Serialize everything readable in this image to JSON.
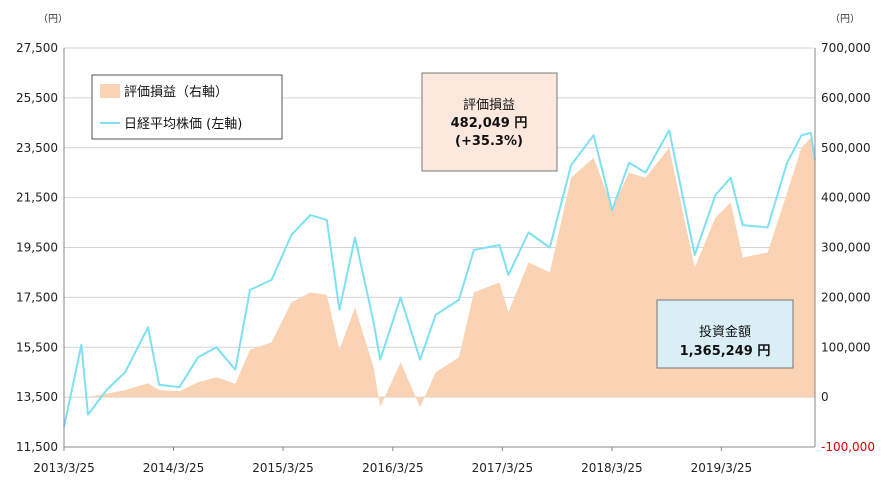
{
  "chart_data": {
    "type": "area",
    "left_unit": "（円）",
    "right_unit": "（円）",
    "x_ticks": [
      "2013/3/25",
      "2014/3/25",
      "2015/3/25",
      "2016/3/25",
      "2017/3/25",
      "2018/3/25",
      "2019/3/25"
    ],
    "left_axis": {
      "ticks": [
        "11,500",
        "13,500",
        "15,500",
        "17,500",
        "19,500",
        "21,500",
        "23,500",
        "25,500",
        "27,500"
      ],
      "ylim": [
        11500,
        27500
      ]
    },
    "right_axis": {
      "ticks": [
        "-100,000",
        "0",
        "100,000",
        "200,000",
        "300,000",
        "400,000",
        "500,000",
        "600,000",
        "700,000"
      ],
      "ylim": [
        -100000,
        700000
      ]
    },
    "legend": {
      "items": [
        {
          "label": "評価損益（右軸）",
          "color": "#f9d3b4"
        },
        {
          "label": "日経平均株価 (左軸)",
          "color": "#7fe0f2"
        }
      ]
    },
    "series": [
      {
        "name": "日経平均株価 (左軸)",
        "axis": "left",
        "color": "#7fe0f2",
        "x": [
          "2013/3/25",
          "2013/4/15",
          "2013/5/22",
          "2013/6/13",
          "2013/8/15",
          "2013/10/15",
          "2013/12/30",
          "2014/2/5",
          "2014/4/14",
          "2014/6/15",
          "2014/8/15",
          "2014/10/17",
          "2014/12/5",
          "2015/2/15",
          "2015/4/22",
          "2015/6/24",
          "2015/8/18",
          "2015/9/29",
          "2015/11/20",
          "2016/1/21",
          "2016/2/12",
          "2016/4/20",
          "2016/6/24",
          "2016/8/15",
          "2016/10/31",
          "2016/12/20",
          "2017/3/15",
          "2017/4/14",
          "2017/6/20",
          "2017/8/30",
          "2017/11/9",
          "2018/1/23",
          "2018/3/26",
          "2018/5/21",
          "2018/7/15",
          "2018/10/2",
          "2018/12/26",
          "2019/3/5",
          "2019/4/25",
          "2019/6/4",
          "2019/8/26",
          "2019/10/30",
          "2019/12/17",
          "2020/1/17",
          "2020/1/31"
        ],
        "y": [
          12300,
          13500,
          15600,
          12800,
          13800,
          14500,
          16300,
          14000,
          13900,
          15100,
          15500,
          14600,
          17800,
          18200,
          20000,
          20800,
          20600,
          17000,
          19900,
          16500,
          15000,
          17500,
          15000,
          16800,
          17400,
          19400,
          19600,
          18400,
          20100,
          19500,
          22800,
          24000,
          21000,
          22900,
          22500,
          24200,
          19200,
          21600,
          22300,
          20400,
          20300,
          22900,
          24000,
          24100,
          23000
        ]
      },
      {
        "name": "評価損益（右軸）",
        "axis": "right",
        "color": "#f9d3b4",
        "x": [
          "2013/3/25",
          "2013/6/13",
          "2013/10/15",
          "2013/12/30",
          "2014/2/5",
          "2014/4/14",
          "2014/6/15",
          "2014/8/15",
          "2014/10/17",
          "2014/12/5",
          "2015/2/15",
          "2015/4/22",
          "2015/6/24",
          "2015/8/18",
          "2015/9/29",
          "2015/11/20",
          "2016/1/21",
          "2016/2/12",
          "2016/4/20",
          "2016/6/24",
          "2016/8/15",
          "2016/10/31",
          "2016/12/20",
          "2017/3/15",
          "2017/4/14",
          "2017/6/20",
          "2017/8/30",
          "2017/11/9",
          "2018/1/23",
          "2018/3/26",
          "2018/5/21",
          "2018/7/15",
          "2018/10/2",
          "2018/12/26",
          "2019/3/5",
          "2019/4/25",
          "2019/6/4",
          "2019/8/26",
          "2019/10/30",
          "2019/12/17",
          "2020/1/17",
          "2020/1/31"
        ],
        "y": [
          0,
          0,
          14000,
          28000,
          14000,
          12000,
          30000,
          40000,
          27000,
          95000,
          110000,
          190000,
          210000,
          205000,
          95000,
          180000,
          60000,
          -20000,
          70000,
          -20000,
          50000,
          80000,
          210000,
          230000,
          170000,
          270000,
          250000,
          440000,
          480000,
          380000,
          450000,
          440000,
          500000,
          260000,
          360000,
          390000,
          280000,
          290000,
          410000,
          500000,
          520000,
          482049
        ]
      }
    ],
    "annotations": {
      "profit": {
        "label": "評価損益",
        "value": "482,049 円",
        "pct": "(+35.3%)"
      },
      "invested": {
        "label": "投資金額",
        "value": "1,365,249 円"
      }
    }
  }
}
